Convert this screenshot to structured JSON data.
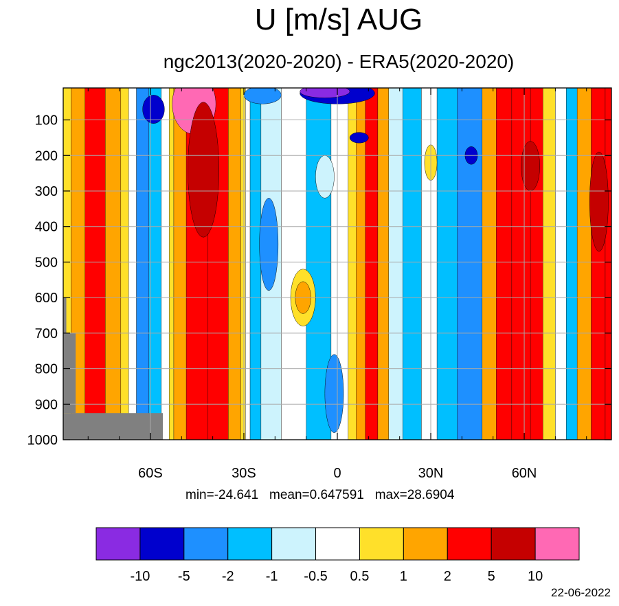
{
  "title": "U [m/s] AUG",
  "subtitle": "ngc2013(2020-2020) - ERA5(2020-2020)",
  "stats": {
    "min_label": "min=-24.641",
    "mean_label": "mean=0.647591",
    "max_label": "max=28.6904"
  },
  "date": "22-06-2022",
  "chart_data": {
    "type": "heatmap",
    "title": "U [m/s] AUG",
    "subtitle": "ngc2013(2020-2020) - ERA5(2020-2020)",
    "x_axis": {
      "range": [
        -88,
        88
      ],
      "ticks": [
        -60,
        -30,
        0,
        30,
        60
      ],
      "tick_labels": [
        "60S",
        "30S",
        "0",
        "30N",
        "60N"
      ]
    },
    "y_axis": {
      "range": [
        1000,
        10
      ],
      "ticks": [
        100,
        200,
        300,
        400,
        500,
        600,
        700,
        800,
        900,
        1000
      ],
      "tick_labels": [
        "100",
        "200",
        "300",
        "400",
        "500",
        "600",
        "700",
        "800",
        "900",
        "1000"
      ]
    },
    "grid": true,
    "colorbar": {
      "labels": [
        "-10",
        "-5",
        "-2",
        "-1",
        "-0.5",
        "0.5",
        "1",
        "2",
        "5",
        "10"
      ],
      "colors": [
        "#8a2be2",
        "#0000cd",
        "#1e90ff",
        "#00bfff",
        "#cdf3fd",
        "#ffffff",
        "#ffe02a",
        "#ffa500",
        "#ff0000",
        "#c50000",
        "#ff69b4"
      ]
    },
    "stats": {
      "min": -24.641,
      "mean": 0.647591,
      "max": 28.6904
    },
    "bands": [
      {
        "lat": -87,
        "color": "#ffe02a"
      },
      {
        "lat": -84,
        "color": "#ffa500"
      },
      {
        "lat": -78,
        "color": "#ff0000"
      },
      {
        "lat": -71,
        "color": "#ffa500"
      },
      {
        "lat": -68,
        "color": "#ffe02a"
      },
      {
        "lat": -66,
        "color": "#ffffff"
      },
      {
        "lat": -63,
        "color": "#1e90ff"
      },
      {
        "lat": -58,
        "color": "#00bfff"
      },
      {
        "lat": -55,
        "color": "#ffffff"
      },
      {
        "lat": -53,
        "color": "#ffe02a"
      },
      {
        "lat": -52,
        "color": "#ffa500"
      },
      {
        "lat": -45,
        "color": "#ff0000"
      },
      {
        "lat": -38,
        "color": "#ff0000"
      },
      {
        "lat": -32,
        "color": "#ffa500"
      },
      {
        "lat": -30,
        "color": "#ffe02a"
      },
      {
        "lat": -29,
        "color": "#ffffff"
      },
      {
        "lat": -27,
        "color": "#00bfff"
      },
      {
        "lat": -22,
        "color": "#cdf3fd"
      },
      {
        "lat": -14,
        "color": "#ffffff"
      },
      {
        "lat": -6,
        "color": "#00bfff"
      },
      {
        "lat": 2,
        "color": "#ffffff"
      },
      {
        "lat": 5,
        "color": "#ffe02a"
      },
      {
        "lat": 7,
        "color": "#ffa500"
      },
      {
        "lat": 11,
        "color": "#ff0000"
      },
      {
        "lat": 15,
        "color": "#ffa500"
      },
      {
        "lat": 18,
        "color": "#cdf3fd"
      },
      {
        "lat": 24,
        "color": "#00bfff"
      },
      {
        "lat": 30,
        "color": "#ffffff"
      },
      {
        "lat": 34,
        "color": "#00bfff"
      },
      {
        "lat": 43,
        "color": "#1e90ff"
      },
      {
        "lat": 50,
        "color": "#ffa500"
      },
      {
        "lat": 52,
        "color": "#ff0000"
      },
      {
        "lat": 60,
        "color": "#ff0000"
      },
      {
        "lat": 64,
        "color": "#ff0000"
      },
      {
        "lat": 68,
        "color": "#ffe02a"
      },
      {
        "lat": 72,
        "color": "#ffffff"
      },
      {
        "lat": 75,
        "color": "#00bfff"
      },
      {
        "lat": 79,
        "color": "#ffa500"
      },
      {
        "lat": 84,
        "color": "#ff0000"
      },
      {
        "lat": 88,
        "color": "#ff0000"
      }
    ],
    "blobs": [
      {
        "lat": -59,
        "p": 70,
        "rlat": 3.5,
        "rp": 40,
        "color": "#0000cd"
      },
      {
        "lat": -46,
        "p": 55,
        "rlat": 7,
        "rp": 85,
        "color": "#ff69b4"
      },
      {
        "lat": -43,
        "p": 240,
        "rlat": 5,
        "rp": 190,
        "color": "#c50000"
      },
      {
        "lat": 0,
        "p": 25,
        "rlat": 12,
        "rp": 30,
        "color": "#0000cd"
      },
      {
        "lat": -4,
        "p": 20,
        "rlat": 8,
        "rp": 18,
        "color": "#8a2be2"
      },
      {
        "lat": 7,
        "p": 150,
        "rlat": 3,
        "rp": 15,
        "color": "#0000cd"
      },
      {
        "lat": -11,
        "p": 600,
        "rlat": 4,
        "rp": 80,
        "color": "#ffe02a"
      },
      {
        "lat": -11,
        "p": 600,
        "rlat": 2.5,
        "rp": 45,
        "color": "#ffa500"
      },
      {
        "lat": -4,
        "p": 260,
        "rlat": 3,
        "rp": 60,
        "color": "#cdf3fd"
      },
      {
        "lat": 30,
        "p": 220,
        "rlat": 2,
        "rp": 50,
        "color": "#ffe02a"
      },
      {
        "lat": 43,
        "p": 200,
        "rlat": 2,
        "rp": 25,
        "color": "#0000cd"
      },
      {
        "lat": 62,
        "p": 230,
        "rlat": 3,
        "rp": 70,
        "color": "#c50000"
      },
      {
        "lat": 84,
        "p": 330,
        "rlat": 3,
        "rp": 140,
        "color": "#c50000"
      },
      {
        "lat": -22,
        "p": 450,
        "rlat": 3,
        "rp": 130,
        "color": "#1e90ff"
      },
      {
        "lat": -1,
        "p": 870,
        "rlat": 3,
        "rp": 110,
        "color": "#1e90ff"
      },
      {
        "lat": -24,
        "p": 30,
        "rlat": 6,
        "rp": 25,
        "color": "#1e90ff"
      }
    ],
    "missing_regions": [
      {
        "lat_from": -88,
        "lat_to": -56,
        "p_from": 925,
        "p_to": 1000
      },
      {
        "lat_from": -88,
        "lat_to": -84,
        "p_from": 700,
        "p_to": 925
      },
      {
        "lat_from": -88,
        "lat_to": -87,
        "p_from": 600,
        "p_to": 700
      }
    ]
  }
}
